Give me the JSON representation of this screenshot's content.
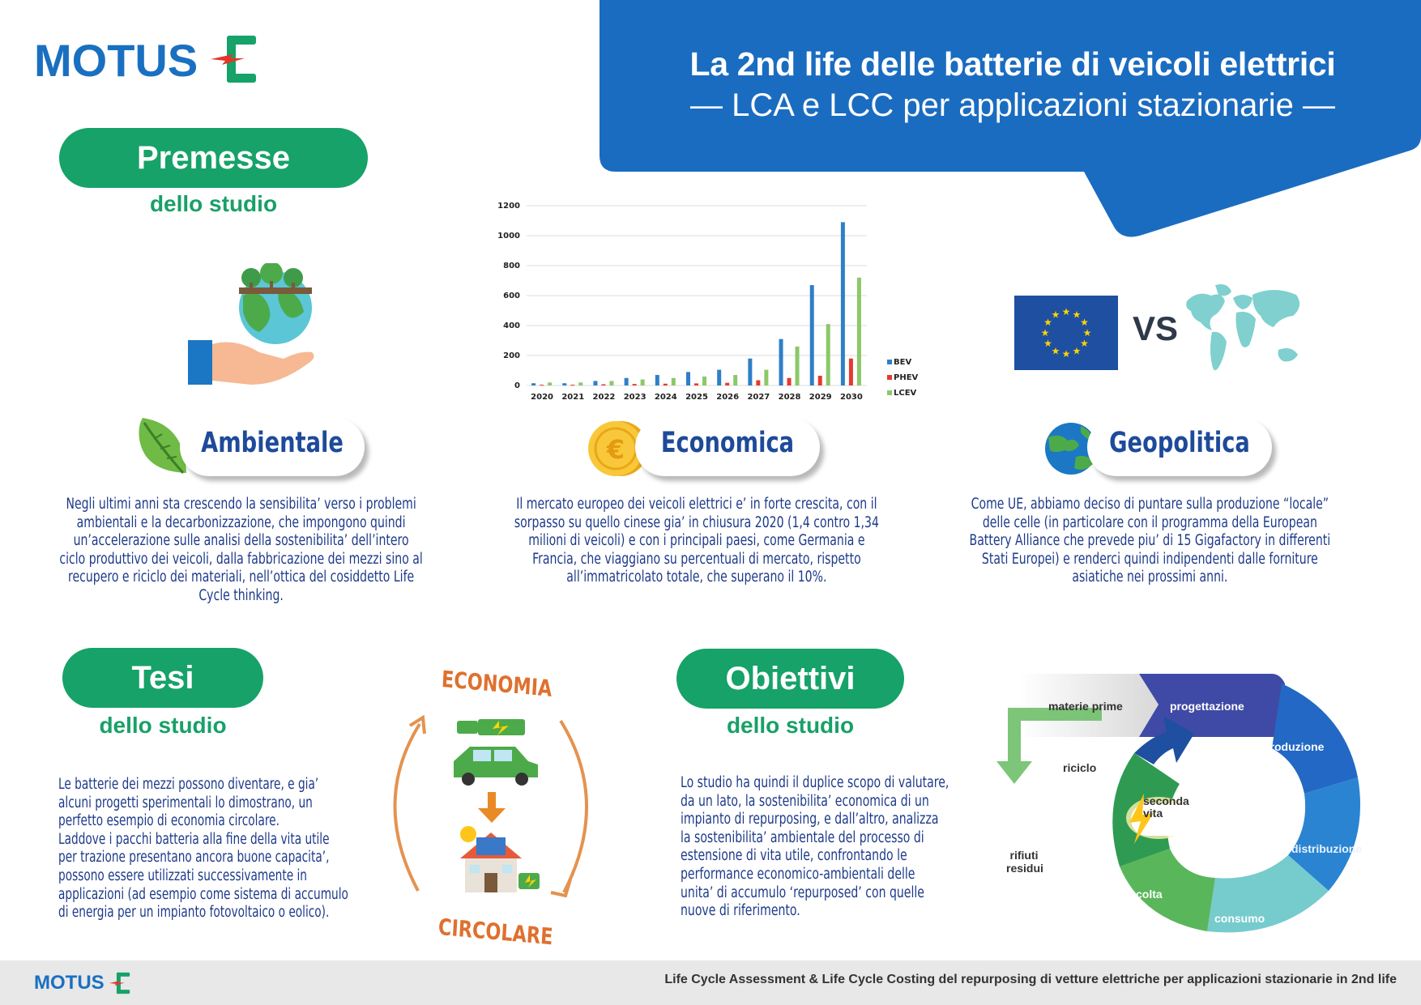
{
  "logo": {
    "text": "MOTUS",
    "letter": "E",
    "footer_text": "MOTUS"
  },
  "header": {
    "title": "La 2nd life delle batterie di veicoli elettrici",
    "subtitle": "— LCA e LCC per applicazioni stazionarie —"
  },
  "premesse": {
    "title": "Premesse",
    "subtitle": "dello studio"
  },
  "categories": {
    "ambientale": {
      "label": "Ambientale",
      "lines": [
        "Negli ultimi anni sta crescendo la sensibilita’ verso i problemi",
        "ambientali e la decarbonizzazione, che impongono quindi",
        "un’accelerazione sulle analisi della sostenibilita’ dell’intero",
        "ciclo produttivo dei veicoli, dalla fabbricazione dei mezzi sino al",
        "recupero e riciclo dei materiali, nell’ottica del cosiddetto Life",
        "Cycle thinking."
      ]
    },
    "economica": {
      "label": "Economica",
      "lines": [
        "Il mercato europeo dei veicoli elettrici e’ in forte crescita, con il",
        "sorpasso su quello cinese gia’ in chiusura 2020 (1,4 contro 1,34",
        "milioni di veicoli) e con i principali paesi, come Germania e",
        "Francia, che viaggiano su percentuali di mercato, rispetto",
        "all’immatricolato totale, che superano il 10%."
      ]
    },
    "geopolitica": {
      "label": "Geopolitica",
      "vs": "VS",
      "lines": [
        "Come UE, abbiamo deciso di puntare sulla produzione “locale”",
        "delle celle (in particolare con il programma della European",
        "Battery Alliance che prevede piu’ di 15 Gigafactory in differenti",
        "Stati Europei) e renderci quindi indipendenti dalle forniture",
        "asiatiche nei prossimi anni."
      ]
    }
  },
  "chart_data": {
    "type": "bar",
    "categories": [
      "2020",
      "2021",
      "2022",
      "2023",
      "2024",
      "2025",
      "2026",
      "2027",
      "2028",
      "2029",
      "2030"
    ],
    "series": [
      {
        "name": "BEV",
        "values": [
          15,
          15,
          30,
          50,
          70,
          90,
          105,
          180,
          310,
          670,
          1090
        ],
        "color": "#2f7fc8"
      },
      {
        "name": "PHEV",
        "values": [
          5,
          5,
          8,
          10,
          12,
          14,
          18,
          35,
          50,
          65,
          180
        ],
        "color": "#e53b2f"
      },
      {
        "name": "LCEV",
        "values": [
          20,
          20,
          30,
          40,
          50,
          60,
          70,
          105,
          260,
          410,
          720
        ],
        "color": "#8cc868"
      }
    ],
    "yticks": [
      "0",
      "200",
      "400",
      "600",
      "800",
      "1000",
      "1200"
    ],
    "ylim": [
      0,
      1200
    ],
    "legend": "right",
    "grid": true
  },
  "tesi": {
    "title": "Tesi",
    "subtitle": "dello studio",
    "lines": [
      "Le batterie dei mezzi possono diventare, e gia’",
      "alcuni progetti sperimentali lo dimostrano, un",
      "perfetto esempio di economia circolare.",
      "Laddove i pacchi batteria alla fine della vita utile",
      "per trazione presentano ancora buone capacita’,",
      "possono essere utilizzati successivamente in",
      "applicazioni (ad esempio come sistema di accumulo",
      "di energia per un impianto fotovoltaico o eolico)."
    ],
    "circular_top": "ECONOMIA",
    "circular_bottom": "CIRCOLARE"
  },
  "obiettivi": {
    "title": "Obiettivi",
    "subtitle": "dello studio",
    "lines": [
      "Lo studio ha quindi il duplice scopo di valutare,",
      "da un lato, la sostenibilita’ economica di un",
      "impianto di repurposing, e dall’altro, analizza",
      "la sostenibilita’ ambientale del processo di",
      "estensione di vita utile, confrontando le",
      "performance economico-ambientali delle",
      "unita’ di accumulo ‘repurposed’ con quelle",
      "nuove di riferimento."
    ]
  },
  "lifecycle": {
    "materie_prime": "materie prime",
    "progettazione": "progettazione",
    "produzione": "produzione",
    "distribuzione": "distribuzione",
    "consumo": "consumo",
    "raccolta": "raccolta",
    "riciclo": "riciclo",
    "rifiuti_line1": "rifiuti",
    "rifiuti_line2": "residui",
    "seconda_line1": "seconda",
    "seconda_line2": "vita"
  },
  "footer": {
    "caption": "Life Cycle Assessment & Life Cycle Costing del repurposing di vetture elettriche per applicazioni stazionarie in 2nd life"
  },
  "colors": {
    "primary_blue": "#1a6cc0",
    "green": "#16a268",
    "text_blue": "#1d3f8f"
  }
}
